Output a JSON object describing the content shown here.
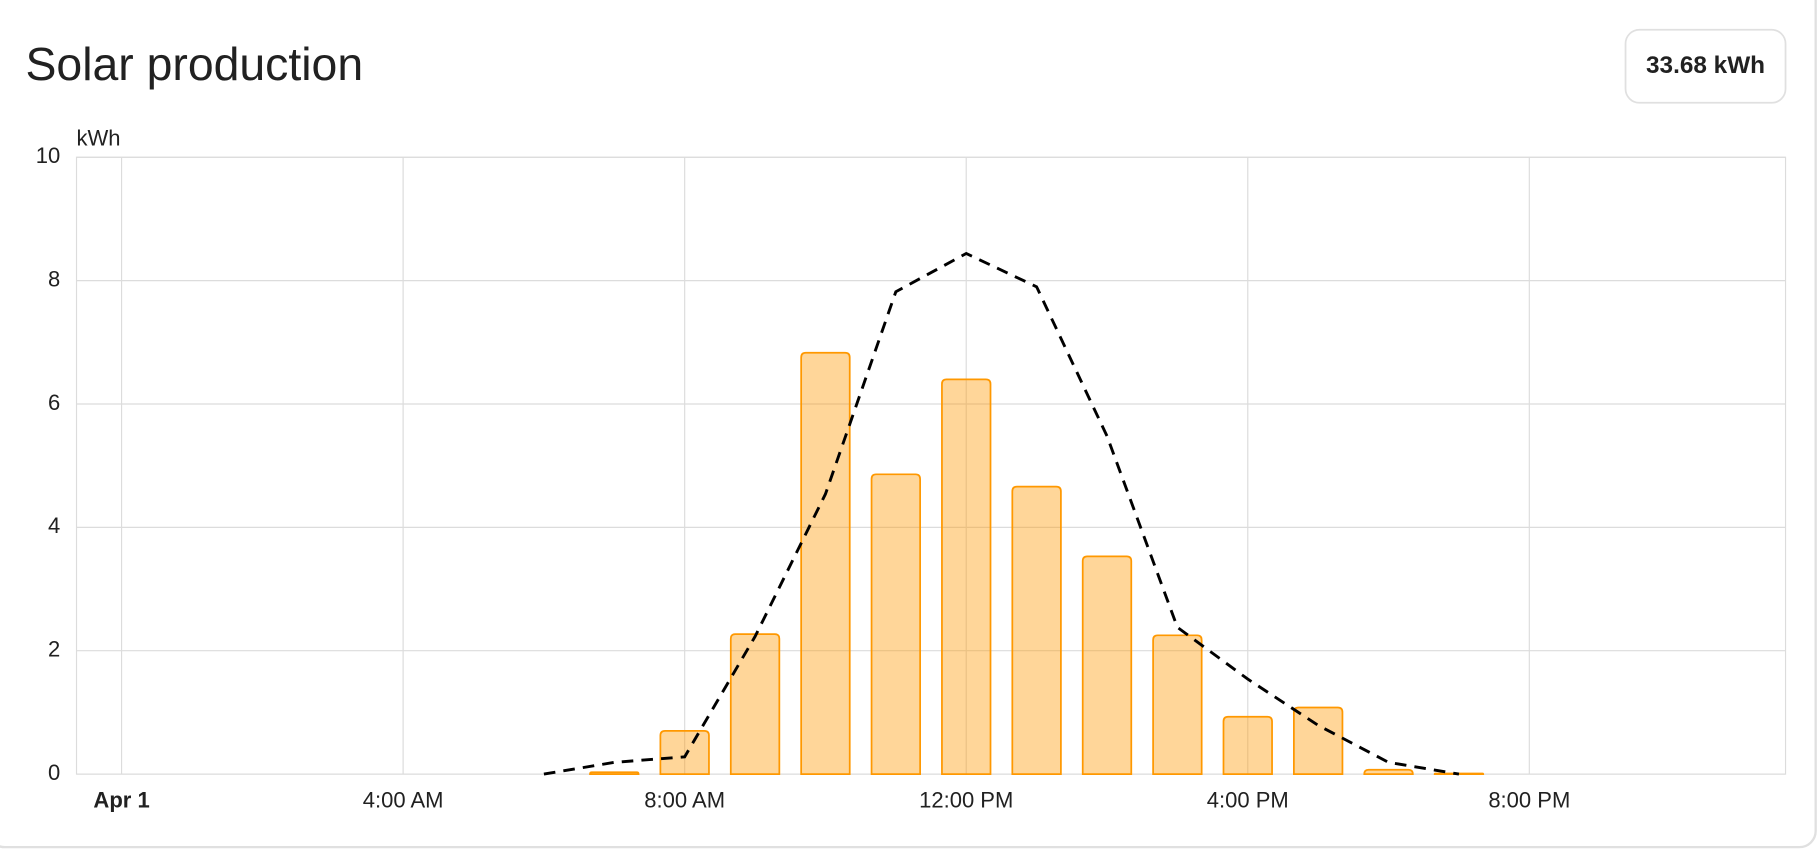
{
  "chart_data": {
    "type": "bar_line",
    "title": "Solar production",
    "total": "33.68 kWh",
    "y_label": "kWh",
    "x": [
      6,
      7,
      8,
      9,
      10,
      11,
      12,
      13,
      14,
      15,
      16,
      17,
      18,
      19
    ],
    "series": [
      {
        "type": "bar",
        "color": "#ff9800",
        "values": [
          null,
          0.03,
          0.7,
          2.27,
          6.83,
          4.86,
          6.4,
          4.66,
          3.53,
          2.25,
          0.93,
          1.08,
          0.07,
          0.01
        ]
      },
      {
        "type": "line",
        "color": "#000000",
        "dashed": true,
        "values": [
          0,
          0.19,
          0.28,
          2.23,
          4.54,
          7.82,
          8.44,
          7.9,
          5.48,
          2.38,
          1.54,
          0.79,
          0.19,
          0
        ]
      }
    ],
    "xlim": [
      -0.64,
      23.64
    ],
    "xticks": [
      {
        "value": 0,
        "label": "Apr 1"
      },
      {
        "value": 4,
        "label": "4:00 AM"
      },
      {
        "value": 8,
        "label": "8:00 AM"
      },
      {
        "value": 12,
        "label": "12:00 PM"
      },
      {
        "value": 16,
        "label": "4:00 PM"
      },
      {
        "value": 20,
        "label": "8:00 PM"
      }
    ],
    "ylim": [
      0,
      10
    ],
    "yticks": [
      0,
      2,
      4,
      6,
      8,
      10
    ],
    "grid": true
  }
}
